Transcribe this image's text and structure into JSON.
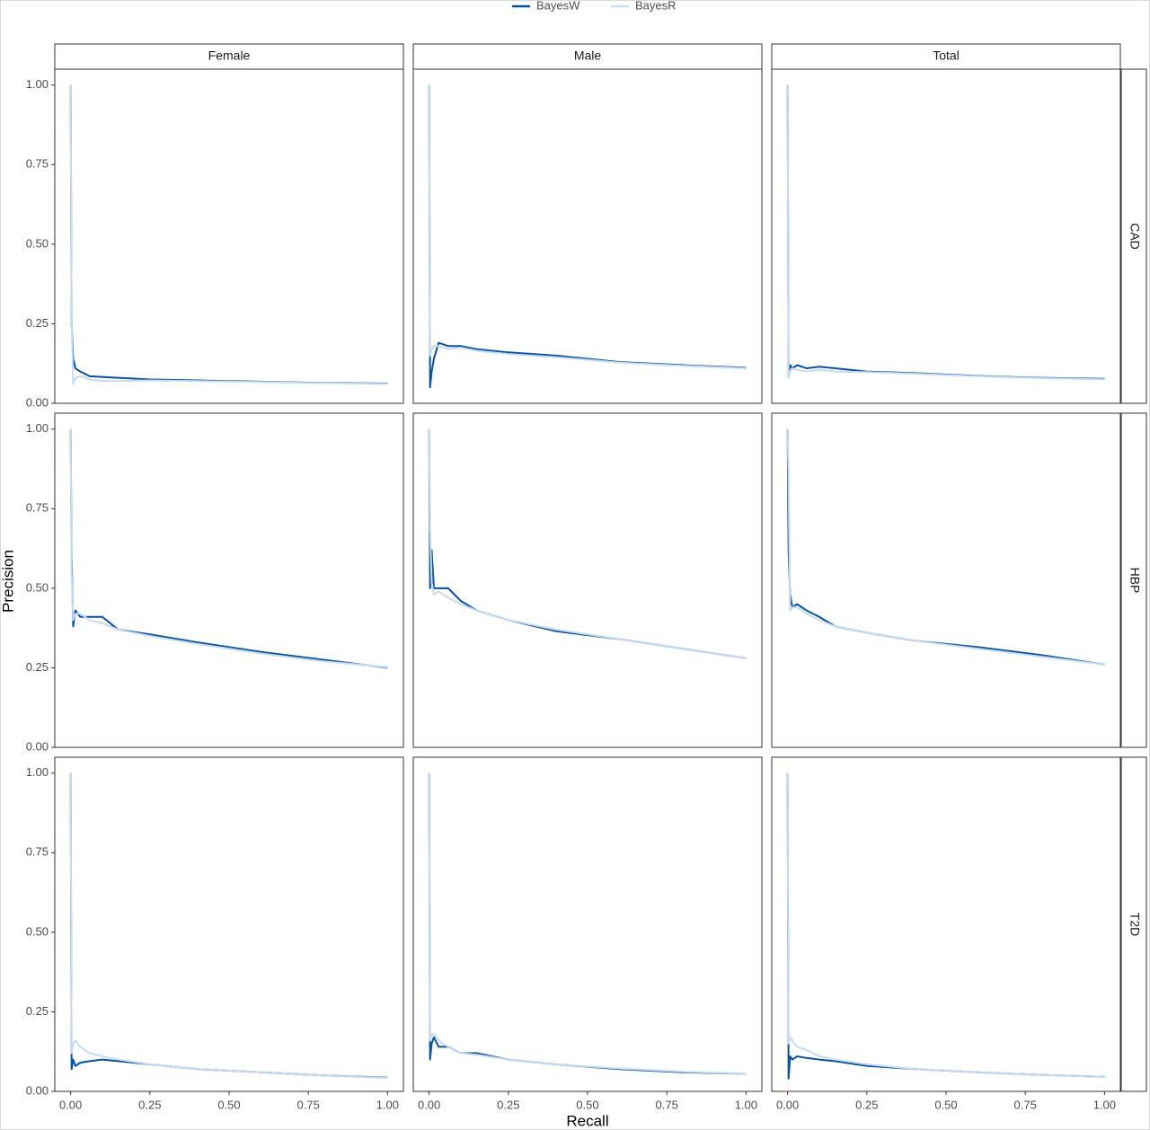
{
  "chart_data": {
    "type": "line",
    "x_label": "Recall",
    "y_label": "Precision",
    "columns": [
      "Female",
      "Male",
      "Total"
    ],
    "rows": [
      "CAD",
      "HBP",
      "T2D"
    ],
    "xlim": [
      -0.05,
      1.05
    ],
    "ylim": [
      0,
      1.05
    ],
    "xticks": [
      {
        "value": 0,
        "label": "0.00"
      },
      0.25,
      {
        "value": 0.5,
        "label": "0.50"
      },
      0.75,
      {
        "value": 1,
        "label": "1.00"
      }
    ],
    "yticks": [
      {
        "value": 0,
        "label": "0.00"
      },
      0.25,
      {
        "value": 0.5,
        "label": "0.50"
      },
      0.75,
      {
        "value": 1,
        "label": "1.00"
      }
    ],
    "panels": [
      {
        "x": [
          0,
          0.003,
          0.008,
          0.015,
          0.03,
          0.06,
          0.1,
          0.15,
          0.25,
          0.4,
          0.6,
          0.8,
          1
        ],
        "series": [
          {
            "name": "BayesW",
            "color": "#08519c",
            "values": [
              1,
              0.25,
              0.14,
              0.11,
              0.1,
              0.085,
              0.083,
              0.08,
              0.075,
              0.072,
              0.068,
              0.064,
              0.062
            ]
          },
          {
            "name": "BayesR",
            "color": "#c6dbef",
            "values": [
              1,
              0.26,
              0.06,
              0.08,
              0.085,
              0.075,
              0.07,
              0.07,
              0.072,
              0.07,
              0.067,
              0.063,
              0.061
            ]
          }
        ]
      },
      {
        "x": [
          0,
          0.003,
          0.008,
          0.015,
          0.03,
          0.06,
          0.1,
          0.15,
          0.25,
          0.4,
          0.6,
          0.8,
          1
        ],
        "series": [
          {
            "name": "BayesW",
            "color": "#08519c",
            "values": [
              1,
              0.05,
              0.1,
              0.14,
              0.19,
              0.18,
              0.18,
              0.17,
              0.16,
              0.15,
              0.13,
              0.12,
              0.112
            ]
          },
          {
            "name": "BayesR",
            "color": "#c6dbef",
            "values": [
              1,
              0.15,
              0.17,
              0.18,
              0.18,
              0.17,
              0.175,
              0.165,
              0.155,
              0.145,
              0.128,
              0.118,
              0.11
            ]
          }
        ]
      },
      {
        "x": [
          0,
          0.003,
          0.008,
          0.015,
          0.03,
          0.06,
          0.1,
          0.15,
          0.25,
          0.4,
          0.6,
          0.8,
          1
        ],
        "series": [
          {
            "name": "BayesW",
            "color": "#08519c",
            "values": [
              1,
              0.09,
              0.12,
              0.11,
              0.12,
              0.11,
              0.115,
              0.11,
              0.1,
              0.095,
              0.086,
              0.08,
              0.077
            ]
          },
          {
            "name": "BayesR",
            "color": "#c6dbef",
            "values": [
              1,
              0.08,
              0.1,
              0.11,
              0.105,
              0.1,
              0.105,
              0.1,
              0.098,
              0.093,
              0.085,
              0.079,
              0.075
            ]
          }
        ]
      },
      {
        "x": [
          0,
          0.003,
          0.008,
          0.015,
          0.03,
          0.06,
          0.1,
          0.15,
          0.25,
          0.4,
          0.6,
          0.8,
          1
        ],
        "series": [
          {
            "name": "BayesW",
            "color": "#08519c",
            "values": [
              1,
              0.6,
              0.38,
              0.43,
              0.41,
              0.41,
              0.41,
              0.37,
              0.355,
              0.33,
              0.3,
              0.275,
              0.25
            ]
          },
          {
            "name": "BayesR",
            "color": "#c6dbef",
            "values": [
              1,
              0.55,
              0.4,
              0.42,
              0.42,
              0.4,
              0.39,
              0.37,
              0.35,
              0.325,
              0.295,
              0.27,
              0.252
            ]
          }
        ]
      },
      {
        "x": [
          0,
          0.003,
          0.008,
          0.015,
          0.03,
          0.06,
          0.1,
          0.15,
          0.25,
          0.4,
          0.6,
          0.8,
          1
        ],
        "series": [
          {
            "name": "BayesW",
            "color": "#08519c",
            "values": [
              1,
              0.5,
              0.62,
              0.5,
              0.5,
              0.5,
              0.46,
              0.43,
              0.4,
              0.365,
              0.34,
              0.31,
              0.28
            ]
          },
          {
            "name": "BayesR",
            "color": "#c6dbef",
            "values": [
              1,
              0.69,
              0.52,
              0.48,
              0.49,
              0.47,
              0.45,
              0.43,
              0.4,
              0.37,
              0.34,
              0.31,
              0.28
            ]
          }
        ]
      },
      {
        "x": [
          0,
          0.003,
          0.008,
          0.015,
          0.03,
          0.06,
          0.1,
          0.15,
          0.25,
          0.4,
          0.6,
          0.8,
          1
        ],
        "series": [
          {
            "name": "BayesW",
            "color": "#08519c",
            "values": [
              1,
              0.62,
              0.48,
              0.44,
              0.45,
              0.43,
              0.41,
              0.38,
              0.36,
              0.335,
              0.315,
              0.29,
              0.26
            ]
          },
          {
            "name": "BayesR",
            "color": "#c6dbef",
            "values": [
              1,
              0.85,
              0.43,
              0.44,
              0.44,
              0.42,
              0.4,
              0.38,
              0.36,
              0.335,
              0.31,
              0.285,
              0.26
            ]
          }
        ]
      },
      {
        "x": [
          0,
          0.003,
          0.008,
          0.015,
          0.03,
          0.06,
          0.1,
          0.15,
          0.25,
          0.4,
          0.6,
          0.8,
          1
        ],
        "series": [
          {
            "name": "BayesW",
            "color": "#08519c",
            "values": [
              1,
              0.07,
              0.1,
              0.08,
              0.09,
              0.095,
              0.1,
              0.095,
              0.085,
              0.07,
              0.06,
              0.05,
              0.043
            ]
          },
          {
            "name": "BayesR",
            "color": "#c6dbef",
            "values": [
              1,
              0.12,
              0.15,
              0.16,
              0.14,
              0.12,
              0.11,
              0.1,
              0.085,
              0.07,
              0.06,
              0.05,
              0.042
            ]
          }
        ]
      },
      {
        "x": [
          0,
          0.003,
          0.008,
          0.015,
          0.03,
          0.06,
          0.1,
          0.15,
          0.25,
          0.4,
          0.6,
          0.8,
          1
        ],
        "series": [
          {
            "name": "BayesW",
            "color": "#08519c",
            "values": [
              1,
              0.1,
              0.15,
              0.17,
              0.14,
              0.14,
              0.12,
              0.12,
              0.1,
              0.085,
              0.07,
              0.06,
              0.055
            ]
          },
          {
            "name": "BayesR",
            "color": "#c6dbef",
            "values": [
              1,
              0.16,
              0.18,
              0.18,
              0.16,
              0.14,
              0.12,
              0.115,
              0.1,
              0.085,
              0.072,
              0.062,
              0.055
            ]
          }
        ]
      },
      {
        "x": [
          0,
          0.003,
          0.008,
          0.015,
          0.03,
          0.06,
          0.1,
          0.15,
          0.25,
          0.4,
          0.6,
          0.8,
          1
        ],
        "series": [
          {
            "name": "BayesW",
            "color": "#08519c",
            "values": [
              1,
              0.04,
              0.11,
              0.1,
              0.11,
              0.105,
              0.1,
              0.095,
              0.08,
              0.07,
              0.06,
              0.052,
              0.046
            ]
          },
          {
            "name": "BayesR",
            "color": "#c6dbef",
            "values": [
              1,
              0.15,
              0.17,
              0.16,
              0.14,
              0.13,
              0.11,
              0.1,
              0.085,
              0.07,
              0.06,
              0.052,
              0.046
            ]
          }
        ]
      }
    ]
  }
}
